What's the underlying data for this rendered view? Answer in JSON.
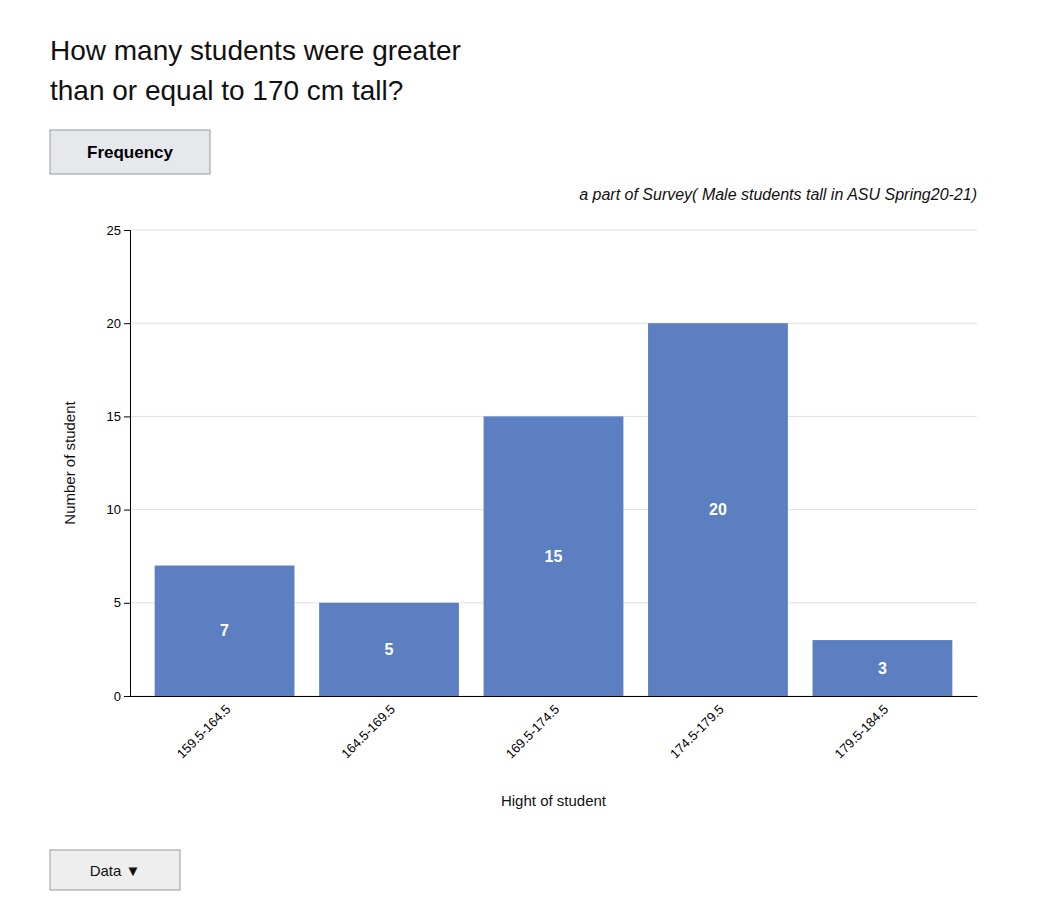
{
  "chart_data": {
    "type": "bar",
    "title": "a part of Survey( Male students tall in  ASU  Spring20-21)",
    "xlabel": "Hight of student",
    "ylabel": "Number of student",
    "annotations": [
      "How many students were greater",
      "than or equal to 170 cm tall?",
      "Frequency",
      "Data ▼"
    ],
    "categories": [
      "159.5-164.5",
      "164.5-169.5",
      "169.5-174.5",
      "174.5-179.5",
      "179.5-184.5"
    ],
    "values": [
      7,
      5,
      15,
      20,
      3
    ],
    "color": "#5B7FC0",
    "ylim": [
      0,
      25
    ],
    "yticks": [
      0,
      5,
      10,
      15,
      20,
      25
    ],
    "grid": true,
    "data_labels": true
  }
}
